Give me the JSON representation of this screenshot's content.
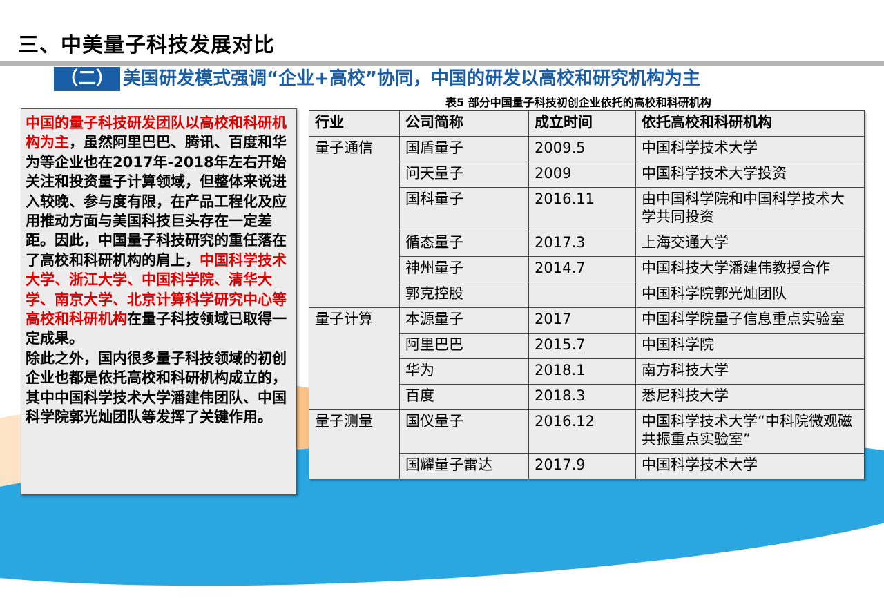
{
  "title": "三、中美量子科技发展对比",
  "subtitle": {
    "number": "（二）",
    "text": "美国研发模式强调“企业+高校”协同，中国的研发以高校和研究机构为主"
  },
  "caption": "表5 部分中国量子科技初创企业依托的高校和科研机构",
  "left_text": {
    "p1_red": "中国的量子科技研发团队以高校和科研机构为主",
    "p1_text": "，虽然阿里巴巴、腾讯、百度和华为等企业也在2017年-2018年左右开始关注和投资量子计算领域，但整体来说进入较晚、参与度有限，在产品工程化及应用推动方面与美国科技巨头存在一定差距。因此，中国量子科技研究的重任落在了高校和科研机构的肩上，",
    "p1_red2": "中国科学技术大学、浙江大学、中国科学院、清华大学、南京大学、北京计算科学研究中心等高校和科研机构",
    "p1_text2": "在量子科技领域已取得一定成果。",
    "p2": "除此之外，国内很多量子科技领域的初创企业也都是依托高校和科研机构成立的，其中中国科学技术大学潘建伟团队、中国科学院郭光灿团队等发挥了关键作用。"
  },
  "table": {
    "headers": [
      "行业",
      "公司简称",
      "成立时间",
      "依托高校和科研机构"
    ],
    "groups": [
      {
        "industry": "量子通信",
        "rows": [
          [
            "国盾量子",
            "2009.5",
            "中国科学技术大学"
          ],
          [
            "问天量子",
            "2009",
            "中国科学技术大学投资"
          ],
          [
            "国科量子",
            "2016.11",
            "由中国科学院和中国科学技术大学共同投资"
          ],
          [
            "循态量子",
            "2017.3",
            "上海交通大学"
          ],
          [
            "神州量子",
            "2014.7",
            "中国科技大学潘建伟教授合作"
          ],
          [
            "郭克控股",
            "",
            "中国科学院郭光灿团队"
          ]
        ]
      },
      {
        "industry": "量子计算",
        "rows": [
          [
            "本源量子",
            "2017",
            "中国科学院量子信息重点实验室"
          ],
          [
            "阿里巴巴",
            "2015.7",
            "中国科学院"
          ],
          [
            "华为",
            "2018.1",
            "南方科技大学"
          ],
          [
            "百度",
            "2018.3",
            "悉尼科技大学"
          ]
        ]
      },
      {
        "industry": "量子测量",
        "rows": [
          [
            "国仪量子",
            "2016.12",
            "中国科学技术大学“中科院微观磁共振重点实验室”"
          ],
          [
            "国耀量子雷达",
            "2017.9",
            "中国科学技术大学"
          ]
        ]
      }
    ]
  },
  "colors": {
    "accent_blue": "#1a5ea8",
    "highlight_red": "#e00000",
    "panel_gray": "#ececec"
  }
}
